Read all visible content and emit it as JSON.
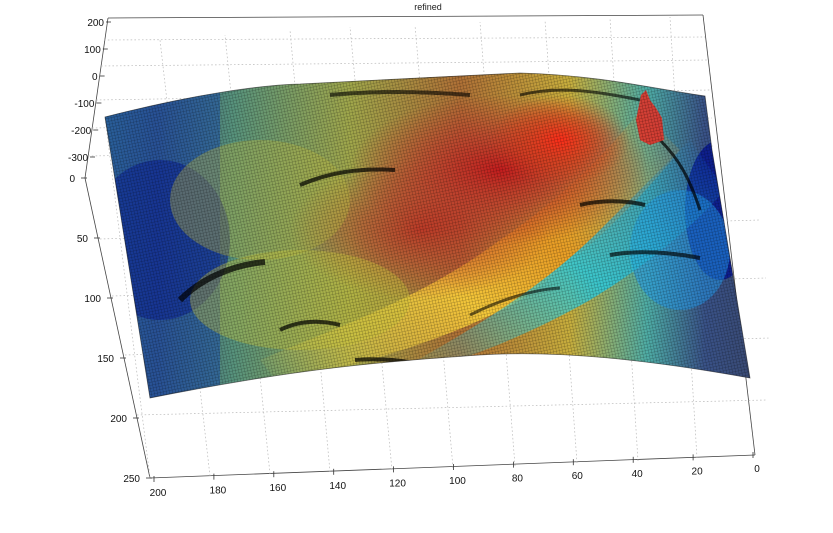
{
  "chart_data": {
    "type": "surface",
    "title": "refined",
    "colormap": "jet",
    "grid": true,
    "x_ticks": [
      "200",
      "180",
      "160",
      "140",
      "120",
      "100",
      "80",
      "60",
      "40",
      "20",
      "0"
    ],
    "y_ticks": [
      "0",
      "50",
      "100",
      "150",
      "200",
      "250"
    ],
    "z_ticks": [
      "200",
      "100",
      "0",
      "-100",
      "-200",
      "-300"
    ],
    "xlim": [
      0,
      200
    ],
    "ylim": [
      0,
      250
    ],
    "zlim": [
      -300,
      200
    ]
  }
}
